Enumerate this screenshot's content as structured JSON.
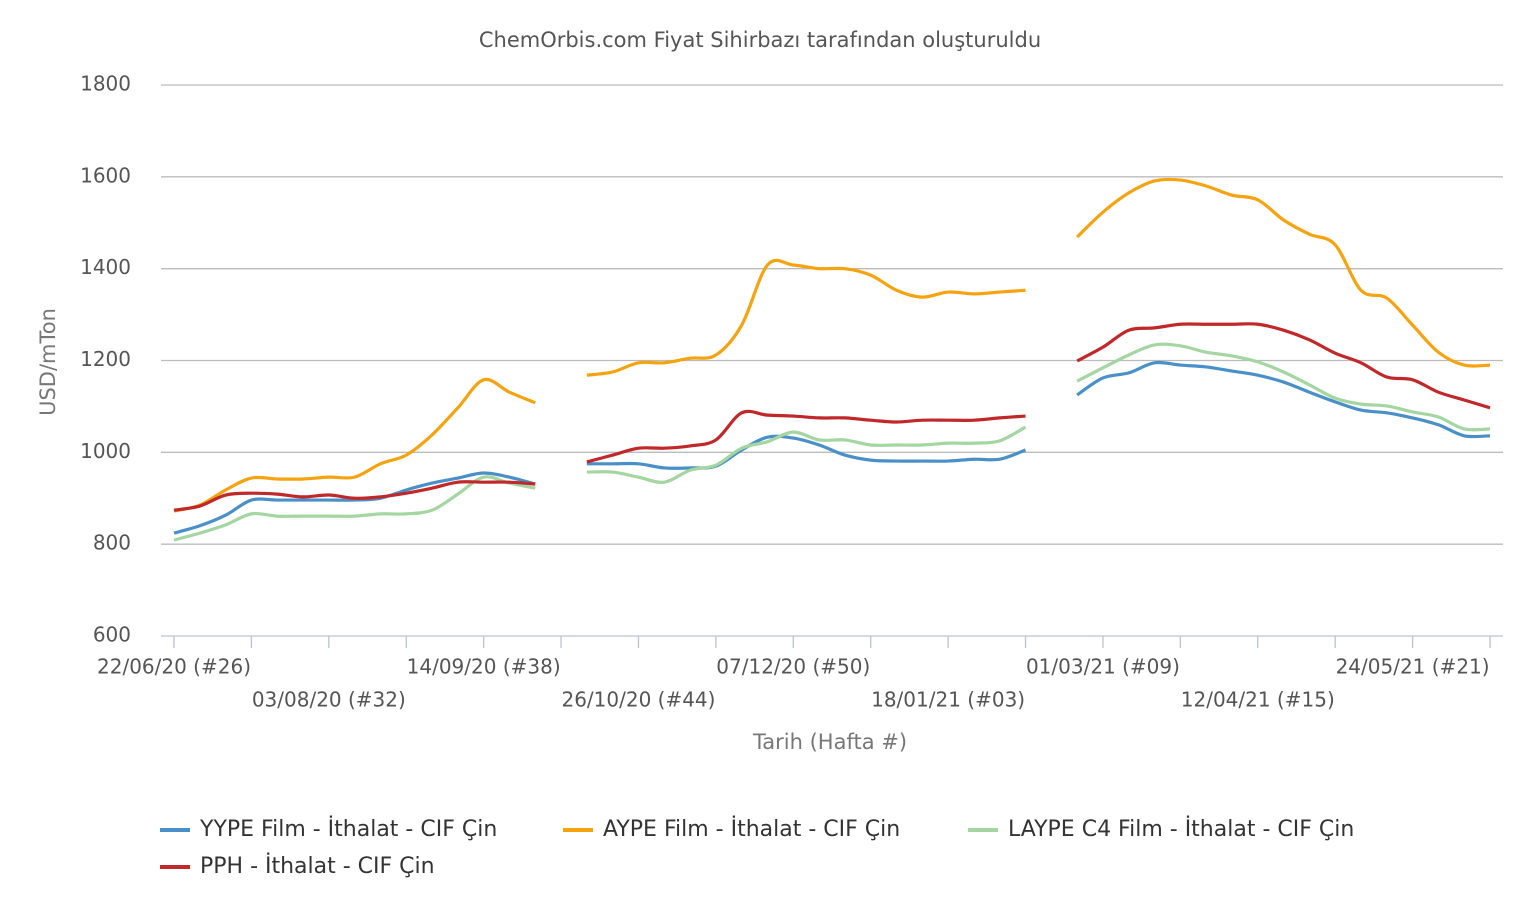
{
  "chart_data": {
    "type": "line",
    "title": "ChemOrbis.com Fiyat Sihirbazı tarafından oluşturuldu",
    "xlabel": "Tarih (Hafta #)",
    "ylabel": "USD/mTon",
    "categories": [
      "22/06/20 (#26)",
      null,
      null,
      null,
      null,
      null,
      "03/08/20 (#32)",
      null,
      null,
      null,
      null,
      null,
      "14/09/20 (#38)",
      null,
      null,
      null,
      null,
      null,
      "26/10/20 (#44)",
      null,
      null,
      null,
      null,
      null,
      "07/12/20 (#50)",
      null,
      null,
      null,
      null,
      null,
      "18/01/21 (#03)",
      null,
      null,
      null,
      null,
      null,
      "01/03/21 (#09)",
      null,
      null,
      null,
      null,
      null,
      "12/04/21 (#15)",
      null,
      null,
      null,
      null,
      null,
      "24/05/21 (#21)",
      null,
      null,
      null
    ],
    "ylim": [
      600,
      1800
    ],
    "yticks": [
      600,
      800,
      1000,
      1200,
      1400,
      1600,
      1800
    ],
    "grid": true,
    "series": [
      {
        "name": "YYPE Film - İthalat - CIF Çin",
        "color": "#4a90c8",
        "values": [
          824,
          840,
          863,
          896,
          896,
          896,
          896,
          896,
          900,
          918,
          933,
          944,
          955,
          946,
          931,
          null,
          975,
          975,
          975,
          966,
          966,
          970,
          1005,
          1033,
          1031,
          1016,
          994,
          983,
          981,
          981,
          981,
          985,
          985,
          1005,
          null,
          1125,
          1162,
          1173,
          1195,
          1190,
          1186,
          1177,
          1168,
          1153,
          1131,
          1110,
          1092,
          1086,
          1075,
          1060,
          1036,
          1036
        ]
      },
      {
        "name": "AYPE Film - İthalat - CIF Çin",
        "color": "#f5a30f",
        "values": [
          872,
          885,
          918,
          944,
          942,
          942,
          946,
          946,
          975,
          994,
          1038,
          1097,
          1158,
          1131,
          1108,
          null,
          1168,
          1175,
          1195,
          1195,
          1205,
          1212,
          1277,
          1408,
          1408,
          1400,
          1400,
          1386,
          1353,
          1338,
          1349,
          1345,
          1349,
          1353,
          null,
          1469,
          1523,
          1565,
          1591,
          1593,
          1580,
          1560,
          1550,
          1506,
          1475,
          1452,
          1353,
          1336,
          1277,
          1218,
          1190,
          1190
        ]
      },
      {
        "name": "LAYPE C4 Film - İthalat - CIF Çin",
        "color": "#a3d6a0",
        "values": [
          809,
          824,
          842,
          866,
          861,
          861,
          861,
          861,
          866,
          866,
          874,
          909,
          946,
          933,
          922,
          null,
          957,
          957,
          946,
          935,
          961,
          972,
          1009,
          1023,
          1044,
          1027,
          1027,
          1016,
          1016,
          1016,
          1020,
          1020,
          1025,
          1055,
          null,
          1155,
          1184,
          1212,
          1234,
          1232,
          1218,
          1210,
          1197,
          1175,
          1147,
          1118,
          1105,
          1101,
          1088,
          1077,
          1051,
          1051
        ]
      },
      {
        "name": "PPH - İthalat - CIF Çin",
        "color": "#c0282a",
        "values": [
          874,
          883,
          907,
          911,
          909,
          903,
          907,
          900,
          903,
          911,
          922,
          935,
          935,
          935,
          931,
          null,
          979,
          994,
          1009,
          1009,
          1014,
          1027,
          1086,
          1081,
          1079,
          1075,
          1075,
          1070,
          1066,
          1070,
          1070,
          1070,
          1075,
          1079,
          null,
          1199,
          1229,
          1266,
          1271,
          1279,
          1279,
          1279,
          1279,
          1266,
          1245,
          1216,
          1195,
          1164,
          1158,
          1131,
          1114,
          1097
        ]
      }
    ]
  }
}
